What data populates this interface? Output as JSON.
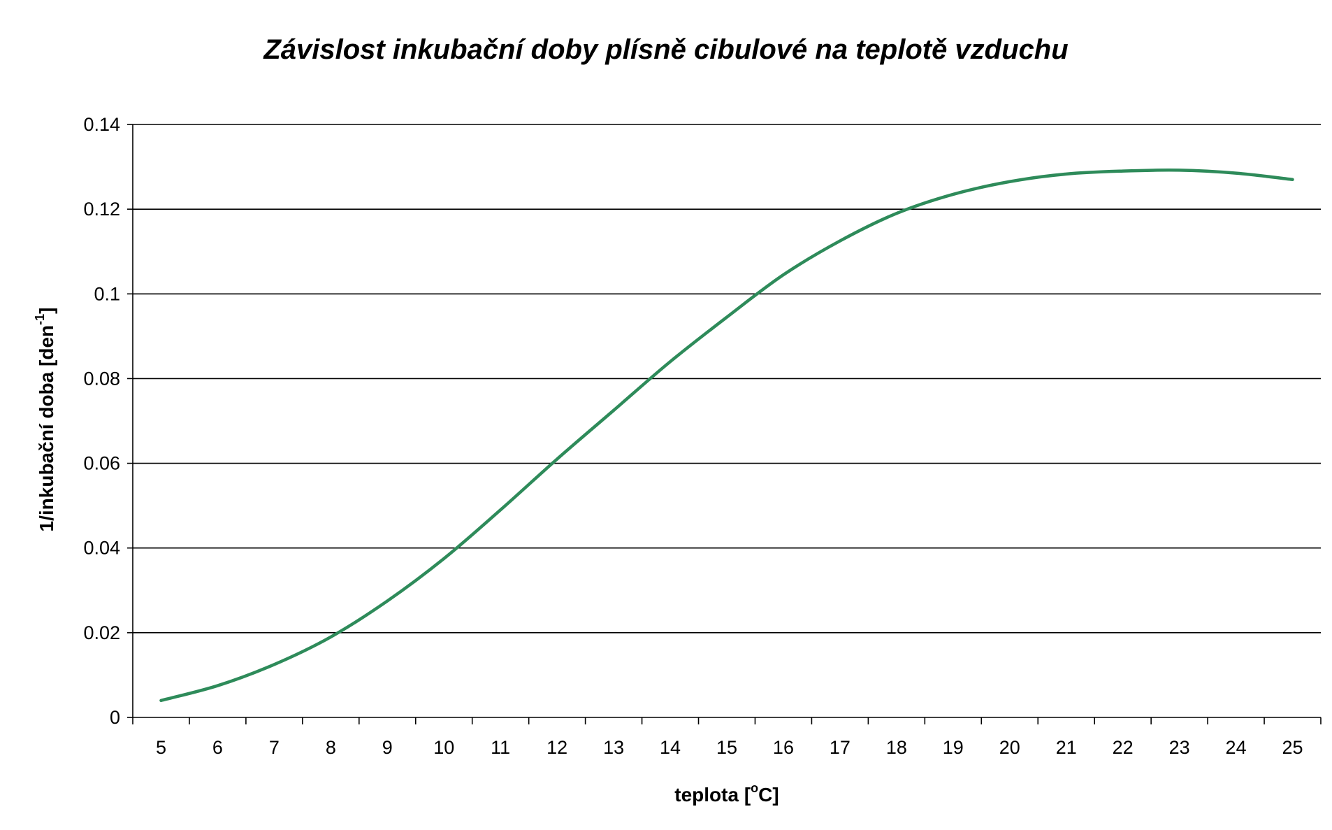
{
  "chart_data": {
    "type": "line",
    "title": "Závislost inkubační doby plísně cibulové na teplotě vzduchu",
    "xlabel": {
      "before": "teplota [",
      "sup": "o",
      "after": "C]"
    },
    "ylabel": {
      "before": "1/inkubační doba [den",
      "sup": "-1",
      "after": "]"
    },
    "x_categories": [
      "5",
      "6",
      "7",
      "8",
      "9",
      "10",
      "11",
      "12",
      "13",
      "14",
      "15",
      "16",
      "17",
      "18",
      "19",
      "20",
      "21",
      "22",
      "23",
      "24",
      "25"
    ],
    "y_ticks": [
      "0",
      "0.02",
      "0.04",
      "0.06",
      "0.08",
      "0.1",
      "0.12",
      "0.14"
    ],
    "ylim": [
      0,
      0.14
    ],
    "grid": true,
    "legend": "none",
    "series": [
      {
        "color": "#2e8b5a",
        "x": [
          5,
          6,
          7,
          8,
          9,
          10,
          11,
          12,
          13,
          14,
          15,
          16,
          17,
          18,
          19,
          20,
          21,
          22,
          23,
          24,
          25
        ],
        "y": [
          0.004,
          0.0075,
          0.0125,
          0.019,
          0.0275,
          0.0375,
          0.049,
          0.061,
          0.0725,
          0.084,
          0.0945,
          0.1045,
          0.1125,
          0.119,
          0.1235,
          0.1265,
          0.1283,
          0.129,
          0.1292,
          0.1285,
          0.127
        ]
      }
    ]
  }
}
